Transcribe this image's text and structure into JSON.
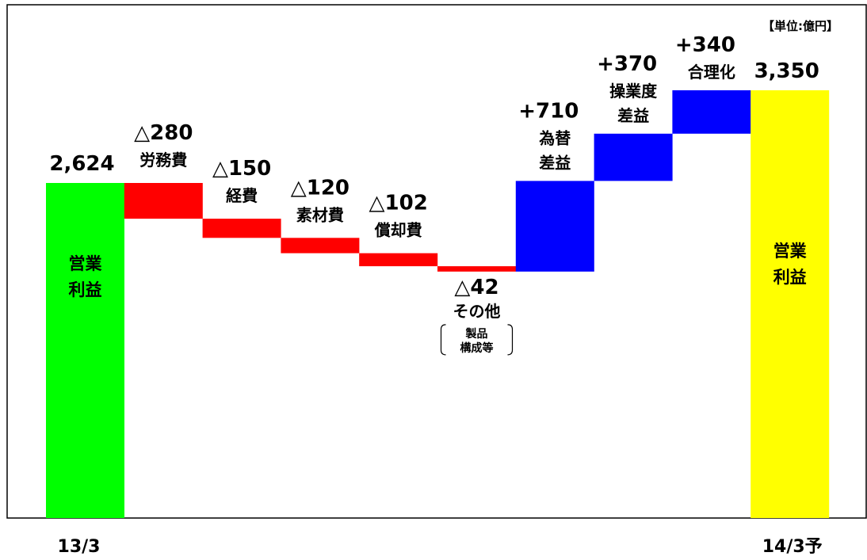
{
  "chart_data": {
    "type": "bar",
    "subtype": "waterfall",
    "unit": "【単位:億円】",
    "bars": [
      {
        "kind": "total",
        "value_label": "2,624",
        "value": 2624,
        "labels": [
          "営業",
          "利益"
        ],
        "color": "#00ff00",
        "x_label": "13/3"
      },
      {
        "kind": "decrease",
        "value_label": "△280",
        "value": -280,
        "labels": [
          "労務費"
        ],
        "color": "#ff0000"
      },
      {
        "kind": "decrease",
        "value_label": "△150",
        "value": -150,
        "labels": [
          "経費"
        ],
        "color": "#ff0000"
      },
      {
        "kind": "decrease",
        "value_label": "△120",
        "value": -120,
        "labels": [
          "素材費"
        ],
        "color": "#ff0000"
      },
      {
        "kind": "decrease",
        "value_label": "△102",
        "value": -102,
        "labels": [
          "償却費"
        ],
        "color": "#ff0000"
      },
      {
        "kind": "decrease",
        "value_label": "△42",
        "value": -42,
        "labels": [
          "その他"
        ],
        "note": [
          "製品",
          "構成等"
        ],
        "color": "#ff0000"
      },
      {
        "kind": "increase",
        "value_label": "+710",
        "value": 710,
        "labels": [
          "為替",
          "差益"
        ],
        "color": "#0000ff"
      },
      {
        "kind": "increase",
        "value_label": "+370",
        "value": 370,
        "labels": [
          "操業度",
          "差益"
        ],
        "color": "#0000ff"
      },
      {
        "kind": "increase",
        "value_label": "+340",
        "value": 340,
        "labels": [
          "合理化"
        ],
        "color": "#0000ff"
      },
      {
        "kind": "total",
        "value_label": "3,350",
        "value": 3350,
        "labels": [
          "営業",
          "利益"
        ],
        "color": "#ffff00",
        "x_label": "14/3予"
      }
    ]
  }
}
